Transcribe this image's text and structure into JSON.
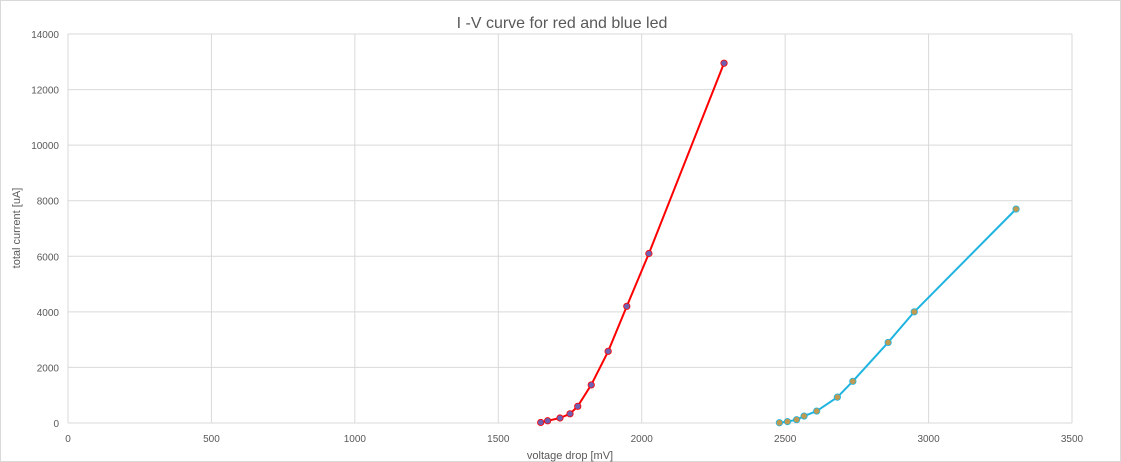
{
  "chart_data": {
    "type": "scatter",
    "title": "I -V curve for red and blue led",
    "xlabel": "voltage drop [mV]",
    "ylabel": "total current [uA]",
    "xlim": [
      0,
      3500
    ],
    "ylim": [
      0,
      14000
    ],
    "x_ticks": [
      "0",
      "500",
      "1000",
      "1500",
      "2000",
      "2500",
      "3000",
      "3500"
    ],
    "y_ticks": [
      "0",
      "2000",
      "4000",
      "6000",
      "8000",
      "10000",
      "12000",
      "14000"
    ],
    "grid": true,
    "legend": "none",
    "series": [
      {
        "line_color": "#ff0000",
        "marker_color": "#7060b0",
        "points": [
          [
            1648,
            20
          ],
          [
            1672,
            80
          ],
          [
            1715,
            180
          ],
          [
            1750,
            330
          ],
          [
            1777,
            600
          ],
          [
            1824,
            1370
          ],
          [
            1883,
            2580
          ],
          [
            1948,
            4200
          ],
          [
            2025,
            6100
          ],
          [
            2287,
            12950
          ]
        ]
      },
      {
        "line_color": "#1fb4e0",
        "marker_color": "#c09a50",
        "points": [
          [
            2480,
            10
          ],
          [
            2508,
            50
          ],
          [
            2540,
            120
          ],
          [
            2566,
            250
          ],
          [
            2610,
            430
          ],
          [
            2682,
            930
          ],
          [
            2736,
            1500
          ],
          [
            2859,
            2900
          ],
          [
            2950,
            4000
          ],
          [
            3305,
            7700
          ]
        ]
      }
    ]
  }
}
